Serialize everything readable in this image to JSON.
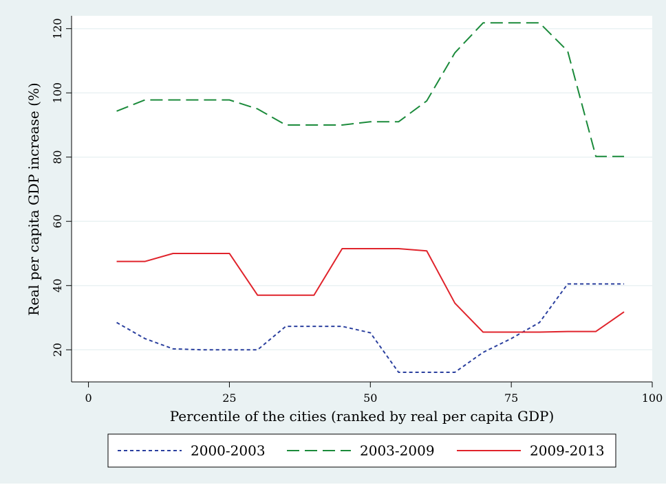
{
  "chart_data": {
    "type": "line",
    "title": "",
    "xlabel": "Percentile of the cities (ranked by real per capita GDP)",
    "ylabel": "Real per capita GDP increase (%)",
    "xlim": [
      -3,
      100
    ],
    "ylim": [
      10,
      124
    ],
    "xticks": [
      0,
      25,
      50,
      75,
      100
    ],
    "xtick_labels": [
      "0",
      "25",
      "50",
      "75",
      "100"
    ],
    "yticks": [
      20,
      40,
      60,
      80,
      100,
      120
    ],
    "ytick_labels": [
      "20",
      "40",
      "60",
      "80",
      "100",
      "120"
    ],
    "grid": "horizontal",
    "legend_position": "bottom",
    "x": [
      5,
      10,
      15,
      20,
      25,
      30,
      35,
      40,
      45,
      50,
      55,
      60,
      65,
      70,
      75,
      80,
      85,
      90,
      95
    ],
    "series": [
      {
        "name": "2000-2003",
        "color": "#2a3f9e",
        "dash": "short-dash",
        "values": [
          28.5,
          23.5,
          20.3,
          20.0,
          20.0,
          20.0,
          27.3,
          27.3,
          27.3,
          25.3,
          13.0,
          13.0,
          13.0,
          19.2,
          23.5,
          28.5,
          40.5,
          40.5,
          40.5
        ]
      },
      {
        "name": "2003-2009",
        "color": "#1a8a3a",
        "dash": "long-dash",
        "values": [
          94.3,
          97.8,
          97.8,
          97.8,
          97.8,
          95.0,
          90.0,
          90.0,
          90.0,
          91.0,
          91.0,
          97.5,
          112.5,
          121.8,
          121.8,
          121.8,
          113.0,
          80.2,
          80.2
        ]
      },
      {
        "name": "2009-2013",
        "color": "#e0232b",
        "dash": "solid",
        "values": [
          47.5,
          47.5,
          50.0,
          50.0,
          50.0,
          37.0,
          37.0,
          37.0,
          51.5,
          51.5,
          51.5,
          50.8,
          34.5,
          25.5,
          25.5,
          25.5,
          25.7,
          25.7,
          31.8
        ]
      }
    ]
  },
  "colors": {
    "outer_background": "#eaf2f3",
    "plot_background": "#ffffff",
    "gridline": "#eaf2f3",
    "axis": "#000000"
  }
}
